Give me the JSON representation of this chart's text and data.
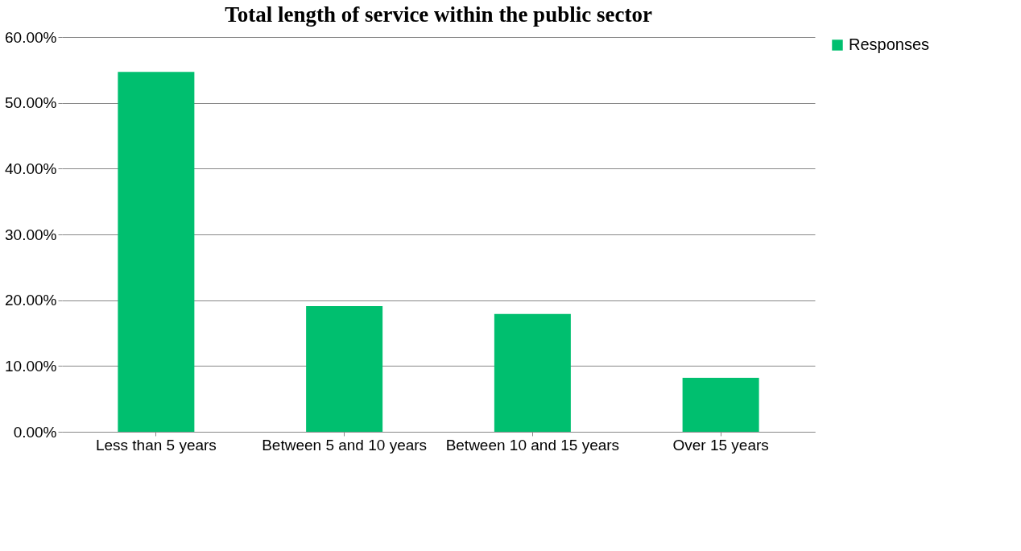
{
  "chart_data": {
    "type": "bar",
    "title": "Total length of service within the public sector",
    "categories": [
      "Less than 5 years",
      "Between 5 and 10 years",
      "Between 10 and 15 years",
      "Over 15 years"
    ],
    "series": [
      {
        "name": "Responses",
        "color": "#00bf6f",
        "values": [
          54.7,
          19.1,
          17.9,
          8.2
        ]
      }
    ],
    "ylim": [
      0,
      60
    ],
    "yticks": [
      {
        "value": 0,
        "label": "0.00%"
      },
      {
        "value": 10,
        "label": "10.00%"
      },
      {
        "value": 20,
        "label": "20.00%"
      },
      {
        "value": 30,
        "label": "30.00%"
      },
      {
        "value": 40,
        "label": "40.00%"
      },
      {
        "value": 50,
        "label": "50.00%"
      },
      {
        "value": 60,
        "label": "60.00%"
      }
    ],
    "grid": "y",
    "legend": "right"
  }
}
